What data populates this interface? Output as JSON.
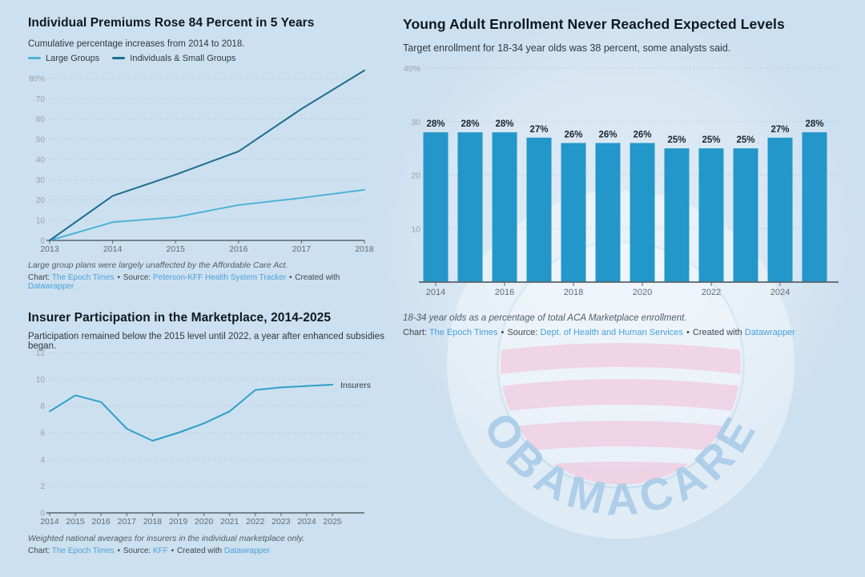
{
  "colors": {
    "background": "#cde0ef",
    "bar": "#2397c9",
    "grid": "#8aa0ae",
    "axis": "#59646d",
    "y_label": "#94a1aa",
    "x_label": "#5f6b74",
    "bar_value_label": "#1a2630",
    "link": "#4aa0dc",
    "watermark_letters": "#a5c9e6",
    "watermark_stripe": "#f2bcd6"
  },
  "watermark": {
    "text": "OBAMACARE",
    "logo": "obama-rising-sun-logo"
  },
  "chart_data": [
    {
      "id": "premiums",
      "type": "line",
      "title": "Individual Premiums Rose 84 Percent in 5 Years",
      "subtitle": "Cumulative percentage increases from 2014 to 2018.",
      "x": [
        2013,
        2014,
        2015,
        2016,
        2017,
        2018
      ],
      "series": [
        {
          "name": "Large Groups",
          "color": "#4db3d8",
          "values": [
            0,
            9,
            11.5,
            17.5,
            21,
            25
          ]
        },
        {
          "name": "Individuals & Small Groups",
          "color": "#1d6e90",
          "values": [
            0,
            22,
            32.5,
            44,
            65,
            84
          ]
        }
      ],
      "ylim": [
        0,
        84
      ],
      "y_ticks": [
        0,
        10,
        20,
        30,
        40,
        50,
        60,
        70,
        80
      ],
      "y_tick_labels": [
        "0",
        "10",
        "20",
        "30",
        "40",
        "50",
        "60",
        "70",
        "80%"
      ],
      "grid": true,
      "legend_position": "top",
      "footnote": "Large group plans were largely unaffected by the Affordable Care Act.",
      "credit": {
        "prefix": "Chart:",
        "chart": "The Epoch Times",
        "sep": "•",
        "source_label": "Source:",
        "source": "Peterson-KFF Health System Tracker",
        "created_label": "Created with",
        "tool": "Datawrapper"
      }
    },
    {
      "id": "insurers",
      "type": "line",
      "title": "Insurer Participation in the Marketplace, 2014-2025",
      "subtitle": "Participation remained below the 2015 level until 2022, a year after enhanced subsidies began.",
      "x": [
        2014,
        2015,
        2016,
        2017,
        2018,
        2019,
        2020,
        2021,
        2022,
        2023,
        2024,
        2025
      ],
      "series": [
        {
          "name": "Insurers",
          "color": "#2f9fcb",
          "values": [
            7.6,
            8.8,
            8.3,
            6.3,
            5.4,
            6.0,
            6.7,
            7.6,
            9.2,
            9.4,
            9.5,
            9.6
          ]
        }
      ],
      "ylim": [
        0,
        12
      ],
      "y_ticks": [
        0,
        2,
        4,
        6,
        8,
        10,
        12
      ],
      "y_tick_labels": [
        "0",
        "2",
        "4",
        "6",
        "8",
        "10",
        "12"
      ],
      "grid": true,
      "end_label": "Insurers",
      "footnote": "Weighted national averages for insurers in the individual marketplace only.",
      "credit": {
        "prefix": "Chart:",
        "chart": "The Epoch Times",
        "sep": "•",
        "source_label": "Source:",
        "source": "KFF",
        "created_label": "Created with",
        "tool": "Datawrapper"
      }
    },
    {
      "id": "enrollment",
      "type": "bar",
      "title": "Young Adult Enrollment Never Reached Expected Levels",
      "subtitle": "Target enrollment for 18-34 year olds was 38 percent, some analysts said.",
      "categories": [
        2014,
        2015,
        2016,
        2017,
        2018,
        2019,
        2020,
        2021,
        2022,
        2023,
        2024,
        2025
      ],
      "values": [
        28,
        28,
        28,
        27,
        26,
        26,
        26,
        25,
        25,
        25,
        27,
        28
      ],
      "bar_labels": [
        "28%",
        "28%",
        "28%",
        "27%",
        "26%",
        "26%",
        "26%",
        "25%",
        "25%",
        "25%",
        "27%",
        "28%"
      ],
      "x_tick_labels": [
        2014,
        2016,
        2018,
        2020,
        2022,
        2024
      ],
      "ylim": [
        0,
        40
      ],
      "y_ticks": [
        10,
        20,
        30,
        40
      ],
      "y_tick_labels": [
        "10",
        "20",
        "30",
        "40%"
      ],
      "grid": true,
      "footnote": "18-34 year olds as a percentage of total ACA Marketplace enrollment.",
      "credit": {
        "prefix": "Chart:",
        "chart": "The Epoch Times",
        "sep": "•",
        "source_label": "Source:",
        "source": "Dept. of Health and Human Services",
        "created_label": "Created with",
        "tool": "Datawrapper"
      }
    }
  ]
}
